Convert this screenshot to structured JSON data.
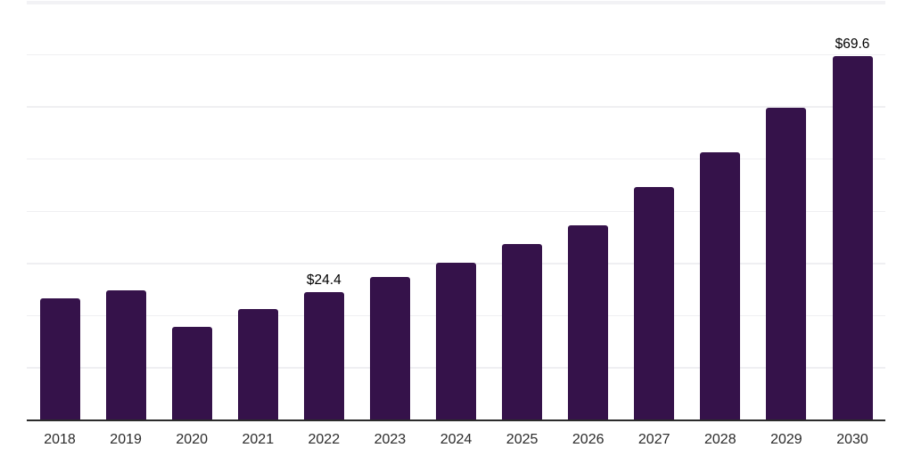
{
  "chart_data": {
    "type": "bar",
    "title": "",
    "xlabel": "",
    "ylabel": "",
    "categories": [
      "2018",
      "2019",
      "2020",
      "2021",
      "2022",
      "2023",
      "2024",
      "2025",
      "2026",
      "2027",
      "2028",
      "2029",
      "2030"
    ],
    "values": [
      23.2,
      24.7,
      17.8,
      21.2,
      24.4,
      27.3,
      30.0,
      33.6,
      37.2,
      44.5,
      51.2,
      59.7,
      69.6
    ],
    "labeled_points": [
      {
        "category": "2022",
        "label": "$24.4"
      },
      {
        "category": "2030",
        "label": "$69.6"
      }
    ],
    "ylim": [
      0,
      80
    ],
    "grid_step": 10,
    "grid": "horizontal",
    "legend": "none",
    "y_axis_labels_visible": false,
    "colors": {
      "bar": "#35124A",
      "axis_line": "#2b2b2b",
      "gridline": "#efeff2",
      "top_gridline": "#f2f2f5",
      "tick_label": "#2b2b2b",
      "data_label": "#000000",
      "background": "#ffffff"
    }
  }
}
